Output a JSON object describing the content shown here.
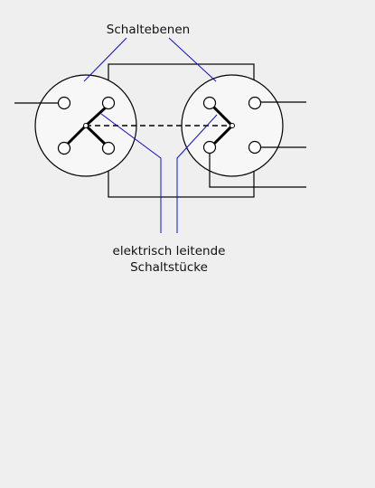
{
  "labels": {
    "top": "Schaltebenen",
    "bottom_line1": "elektrisch leitende",
    "bottom_line2": "Schaltstücke"
  },
  "colors": {
    "background": "#efefef",
    "disc_fill": "#f7f7f7",
    "wire": "#000000",
    "pointer_line": "#1010cc",
    "text": "#111111"
  }
}
